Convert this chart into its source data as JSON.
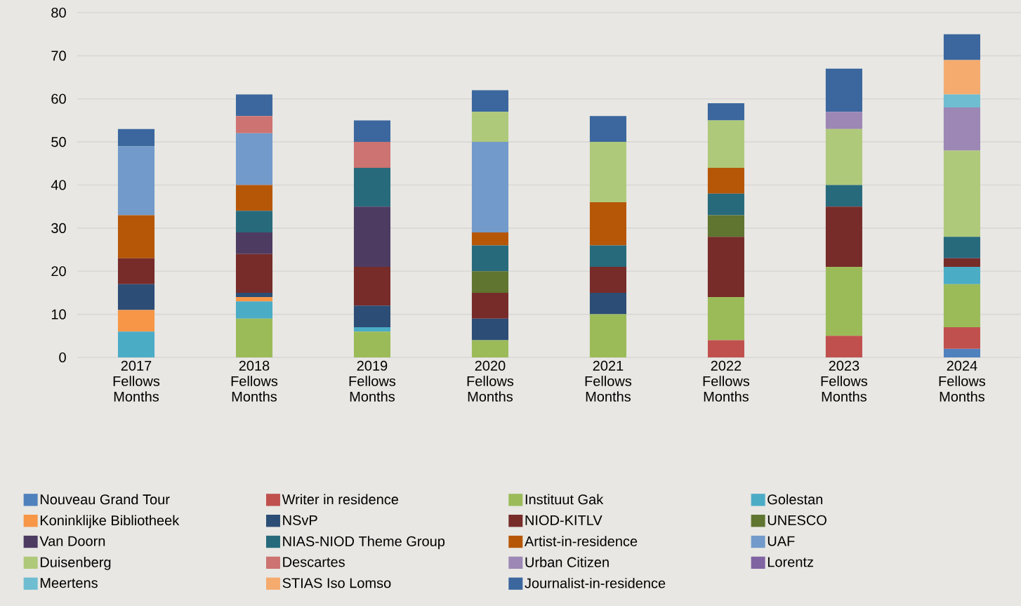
{
  "chart_data": {
    "type": "bar",
    "stacked": true,
    "categories": [
      "2017 Fellows Months",
      "2018 Fellows Months",
      "2019 Fellows Months",
      "2020 Fellows Months",
      "2021 Fellows Months",
      "2022 Fellows Months",
      "2023 Fellows Months",
      "2024 Fellows Months"
    ],
    "ylim": [
      0,
      80
    ],
    "yticks": [
      0,
      10,
      20,
      30,
      40,
      50,
      60,
      70,
      80
    ],
    "grid": "y",
    "legend": "bottom",
    "series": [
      {
        "name": "Nouveau Grand Tour",
        "color": "#4f81bd",
        "values": [
          0,
          0,
          0,
          0,
          0,
          0,
          0,
          2
        ]
      },
      {
        "name": "Writer in residence",
        "color": "#c0504d",
        "values": [
          0,
          0,
          0,
          0,
          0,
          4,
          5,
          5
        ]
      },
      {
        "name": "Instituut Gak",
        "color": "#9bbb59",
        "values": [
          0,
          9,
          6,
          4,
          10,
          10,
          16,
          10
        ]
      },
      {
        "name": "Golestan",
        "color": "#4bacc6",
        "values": [
          6,
          4,
          1,
          0,
          0,
          0,
          0,
          4
        ]
      },
      {
        "name": "Koninklijke Bibliotheek",
        "color": "#f79646",
        "values": [
          5,
          1,
          0,
          0,
          0,
          0,
          0,
          0
        ]
      },
      {
        "name": "NSvP",
        "color": "#2c4d75",
        "values": [
          6,
          1,
          5,
          5,
          5,
          0,
          0,
          0
        ]
      },
      {
        "name": "NIOD-KITLV",
        "color": "#772c2a",
        "values": [
          6,
          9,
          9,
          6,
          6,
          14,
          14,
          2
        ]
      },
      {
        "name": "UNESCO",
        "color": "#5f7530",
        "values": [
          0,
          0,
          0,
          5,
          0,
          5,
          0,
          0
        ]
      },
      {
        "name": "Van Doorn",
        "color": "#4d3b62",
        "values": [
          0,
          5,
          14,
          0,
          0,
          0,
          0,
          0
        ]
      },
      {
        "name": "NIAS-NIOD Theme Group",
        "color": "#276a7c",
        "values": [
          0,
          5,
          9,
          6,
          5,
          5,
          5,
          5
        ]
      },
      {
        "name": "Artist-in-residence",
        "color": "#b65708",
        "values": [
          10,
          6,
          0,
          3,
          10,
          6,
          0,
          0
        ]
      },
      {
        "name": "UAF",
        "color": "#729aca",
        "values": [
          16,
          12,
          0,
          21,
          0,
          0,
          0,
          0
        ]
      },
      {
        "name": "Duisenberg",
        "color": "#afc97a",
        "values": [
          0,
          0,
          0,
          7,
          14,
          11,
          13,
          20
        ]
      },
      {
        "name": "Descartes",
        "color": "#cd7371",
        "values": [
          0,
          4,
          6,
          0,
          0,
          0,
          0,
          0
        ]
      },
      {
        "name": "Urban Citizen",
        "color": "#9c87b5",
        "values": [
          0,
          0,
          0,
          0,
          0,
          0,
          4,
          10
        ]
      },
      {
        "name": "Lorentz",
        "color": "#8064a2",
        "values": [
          0,
          0,
          0,
          0,
          0,
          0,
          0,
          0
        ]
      },
      {
        "name": "Meertens",
        "color": "#6fbdd1",
        "values": [
          0,
          0,
          0,
          0,
          0,
          0,
          0,
          3
        ]
      },
      {
        "name": "STIAS Iso Lomso",
        "color": "#f5ab6e",
        "values": [
          0,
          0,
          0,
          0,
          0,
          0,
          0,
          8
        ]
      },
      {
        "name": "Journalist-in-residence",
        "color": "#3b679e",
        "values": [
          4,
          5,
          5,
          5,
          6,
          4,
          10,
          6
        ]
      }
    ]
  }
}
